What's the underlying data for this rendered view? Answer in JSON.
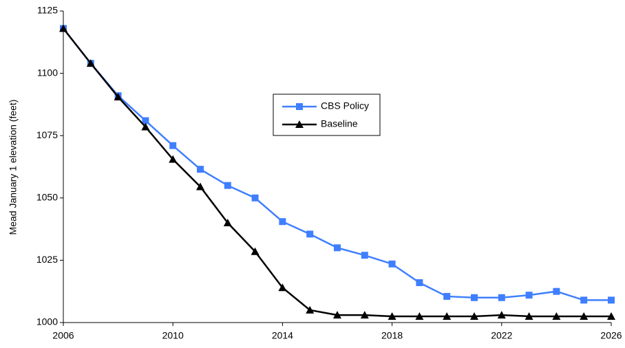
{
  "chart_data": {
    "type": "line",
    "y_label": "Mead January 1 elevation (feet)",
    "x": [
      2006,
      2007,
      2008,
      2009,
      2010,
      2011,
      2012,
      2013,
      2014,
      2015,
      2016,
      2017,
      2018,
      2019,
      2020,
      2021,
      2022,
      2023,
      2024,
      2025,
      2026
    ],
    "series": [
      {
        "name": "CBS Policy",
        "color": "#3f7fff",
        "marker": "square",
        "values": [
          1118,
          1104,
          1091,
          1081,
          1071,
          1061.5,
          1055,
          1050,
          1040.5,
          1035.5,
          1030,
          1027,
          1023.5,
          1016,
          1010.5,
          1010,
          1010,
          1011,
          1012.5,
          1009,
          1009
        ]
      },
      {
        "name": "Baseline",
        "color": "#000000",
        "marker": "triangle",
        "values": [
          1118,
          1104,
          1090.5,
          1078.5,
          1065.5,
          1054.5,
          1040,
          1028.5,
          1014,
          1005,
          1003,
          1003,
          1002.5,
          1002.5,
          1002.5,
          1002.5,
          1003,
          1002.5,
          1002.5,
          1002.5,
          1002.5
        ]
      }
    ],
    "xlim": [
      2006,
      2026
    ],
    "xticks": [
      2006,
      2010,
      2014,
      2018,
      2022,
      2026
    ],
    "ylim": [
      1000,
      1125
    ],
    "yticks": [
      1000,
      1025,
      1050,
      1075,
      1100,
      1125
    ]
  }
}
